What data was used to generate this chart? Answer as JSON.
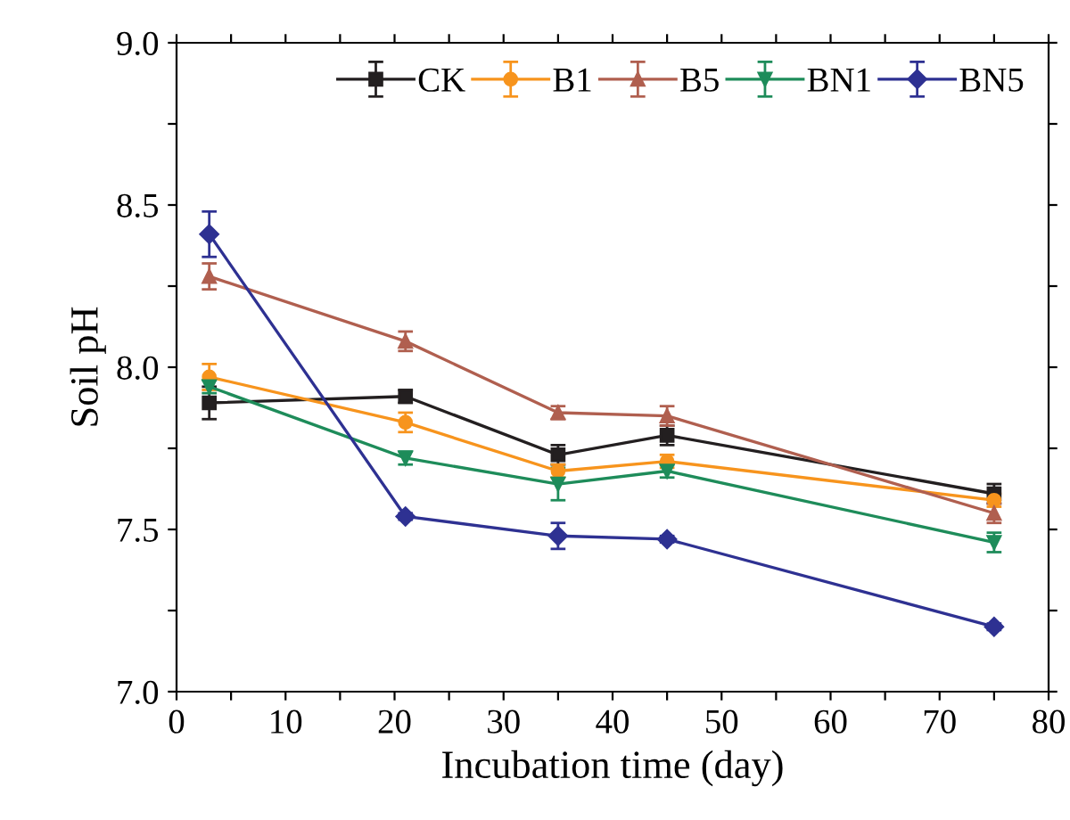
{
  "chart_data": {
    "type": "line",
    "xlabel": "Incubation time (day)",
    "ylabel": "Soil pH",
    "x": [
      3,
      21,
      35,
      45,
      75
    ],
    "xlim": [
      0,
      80
    ],
    "xticks": [
      0,
      {
        "value": 5,
        "label": null
      },
      10,
      {
        "value": 15,
        "label": null
      },
      20,
      {
        "value": 25,
        "label": null
      },
      30,
      {
        "value": 35,
        "label": null
      },
      40,
      {
        "value": 45,
        "label": null
      },
      50,
      {
        "value": 55,
        "label": null
      },
      60,
      {
        "value": 65,
        "label": null
      },
      70,
      {
        "value": 75,
        "label": null
      },
      80
    ],
    "ylim": [
      7.0,
      9.0
    ],
    "yticks": [
      {
        "value": 7.0,
        "label": "7.0"
      },
      {
        "value": 7.25,
        "label": null
      },
      {
        "value": 7.5,
        "label": "7.5"
      },
      {
        "value": 7.75,
        "label": null
      },
      {
        "value": 8.0,
        "label": "8.0"
      },
      {
        "value": 8.25,
        "label": null
      },
      {
        "value": 8.5,
        "label": "8.5"
      },
      {
        "value": 8.75,
        "label": null
      },
      {
        "value": 9.0,
        "label": "9.0"
      }
    ],
    "grid": false,
    "legend": "top right",
    "line_style": "solid",
    "series": [
      {
        "name": "CK",
        "color": "#231f20",
        "marker": "square",
        "values": [
          7.89,
          7.91,
          7.73,
          7.79,
          7.61
        ],
        "errors": [
          0.05,
          0.02,
          0.03,
          0.03,
          0.03
        ]
      },
      {
        "name": "B1",
        "color": "#f7941d",
        "marker": "circle",
        "values": [
          7.97,
          7.83,
          7.68,
          7.71,
          7.59
        ],
        "errors": [
          0.04,
          0.03,
          0.02,
          0.02,
          0.02
        ]
      },
      {
        "name": "B5",
        "color": "#b05f4f",
        "marker": "triangle",
        "values": [
          8.28,
          8.08,
          7.86,
          7.85,
          7.55
        ],
        "errors": [
          0.04,
          0.03,
          0.02,
          0.03,
          0.03
        ]
      },
      {
        "name": "BN1",
        "color": "#1e8c5a",
        "marker": "triangle_down",
        "values": [
          7.94,
          7.72,
          7.64,
          7.68,
          7.46
        ],
        "errors": [
          0.02,
          0.02,
          0.05,
          0.02,
          0.03
        ]
      },
      {
        "name": "BN5",
        "color": "#2e3192",
        "marker": "diamond",
        "values": [
          8.41,
          7.54,
          7.48,
          7.47,
          7.2
        ],
        "errors": [
          0.07,
          0.01,
          0.04,
          0.01,
          0.01
        ]
      }
    ]
  }
}
